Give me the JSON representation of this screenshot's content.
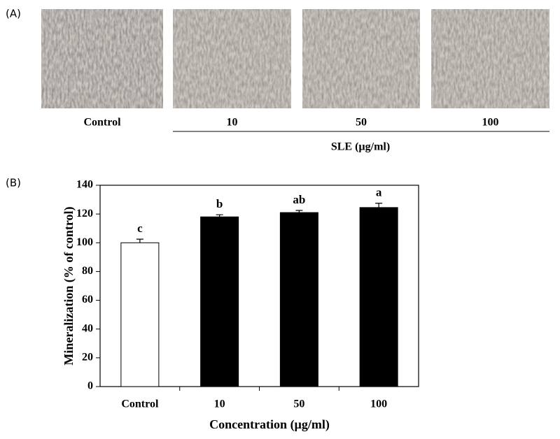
{
  "panel_a": {
    "label": "(A)",
    "images": [
      "Control",
      "10",
      "50",
      "100"
    ],
    "group_label": "SLE (µg/ml)"
  },
  "chart_data": {
    "type": "bar",
    "panel_label": "(B)",
    "categories": [
      "Control",
      "10",
      "50",
      "100"
    ],
    "values": [
      100,
      118,
      121,
      124.5
    ],
    "errors": [
      2.5,
      1.5,
      1.5,
      3
    ],
    "colors": [
      "#ffffff",
      "#000000",
      "#000000",
      "#000000"
    ],
    "annotations": [
      "c",
      "b",
      "ab",
      "a"
    ],
    "xlabel": "Concentration (µg/ml)",
    "ylabel": "Mineralization (% of control)",
    "ylim": [
      0,
      140
    ],
    "yticks": [
      0,
      20,
      40,
      60,
      80,
      100,
      120,
      140
    ],
    "grid": false
  }
}
